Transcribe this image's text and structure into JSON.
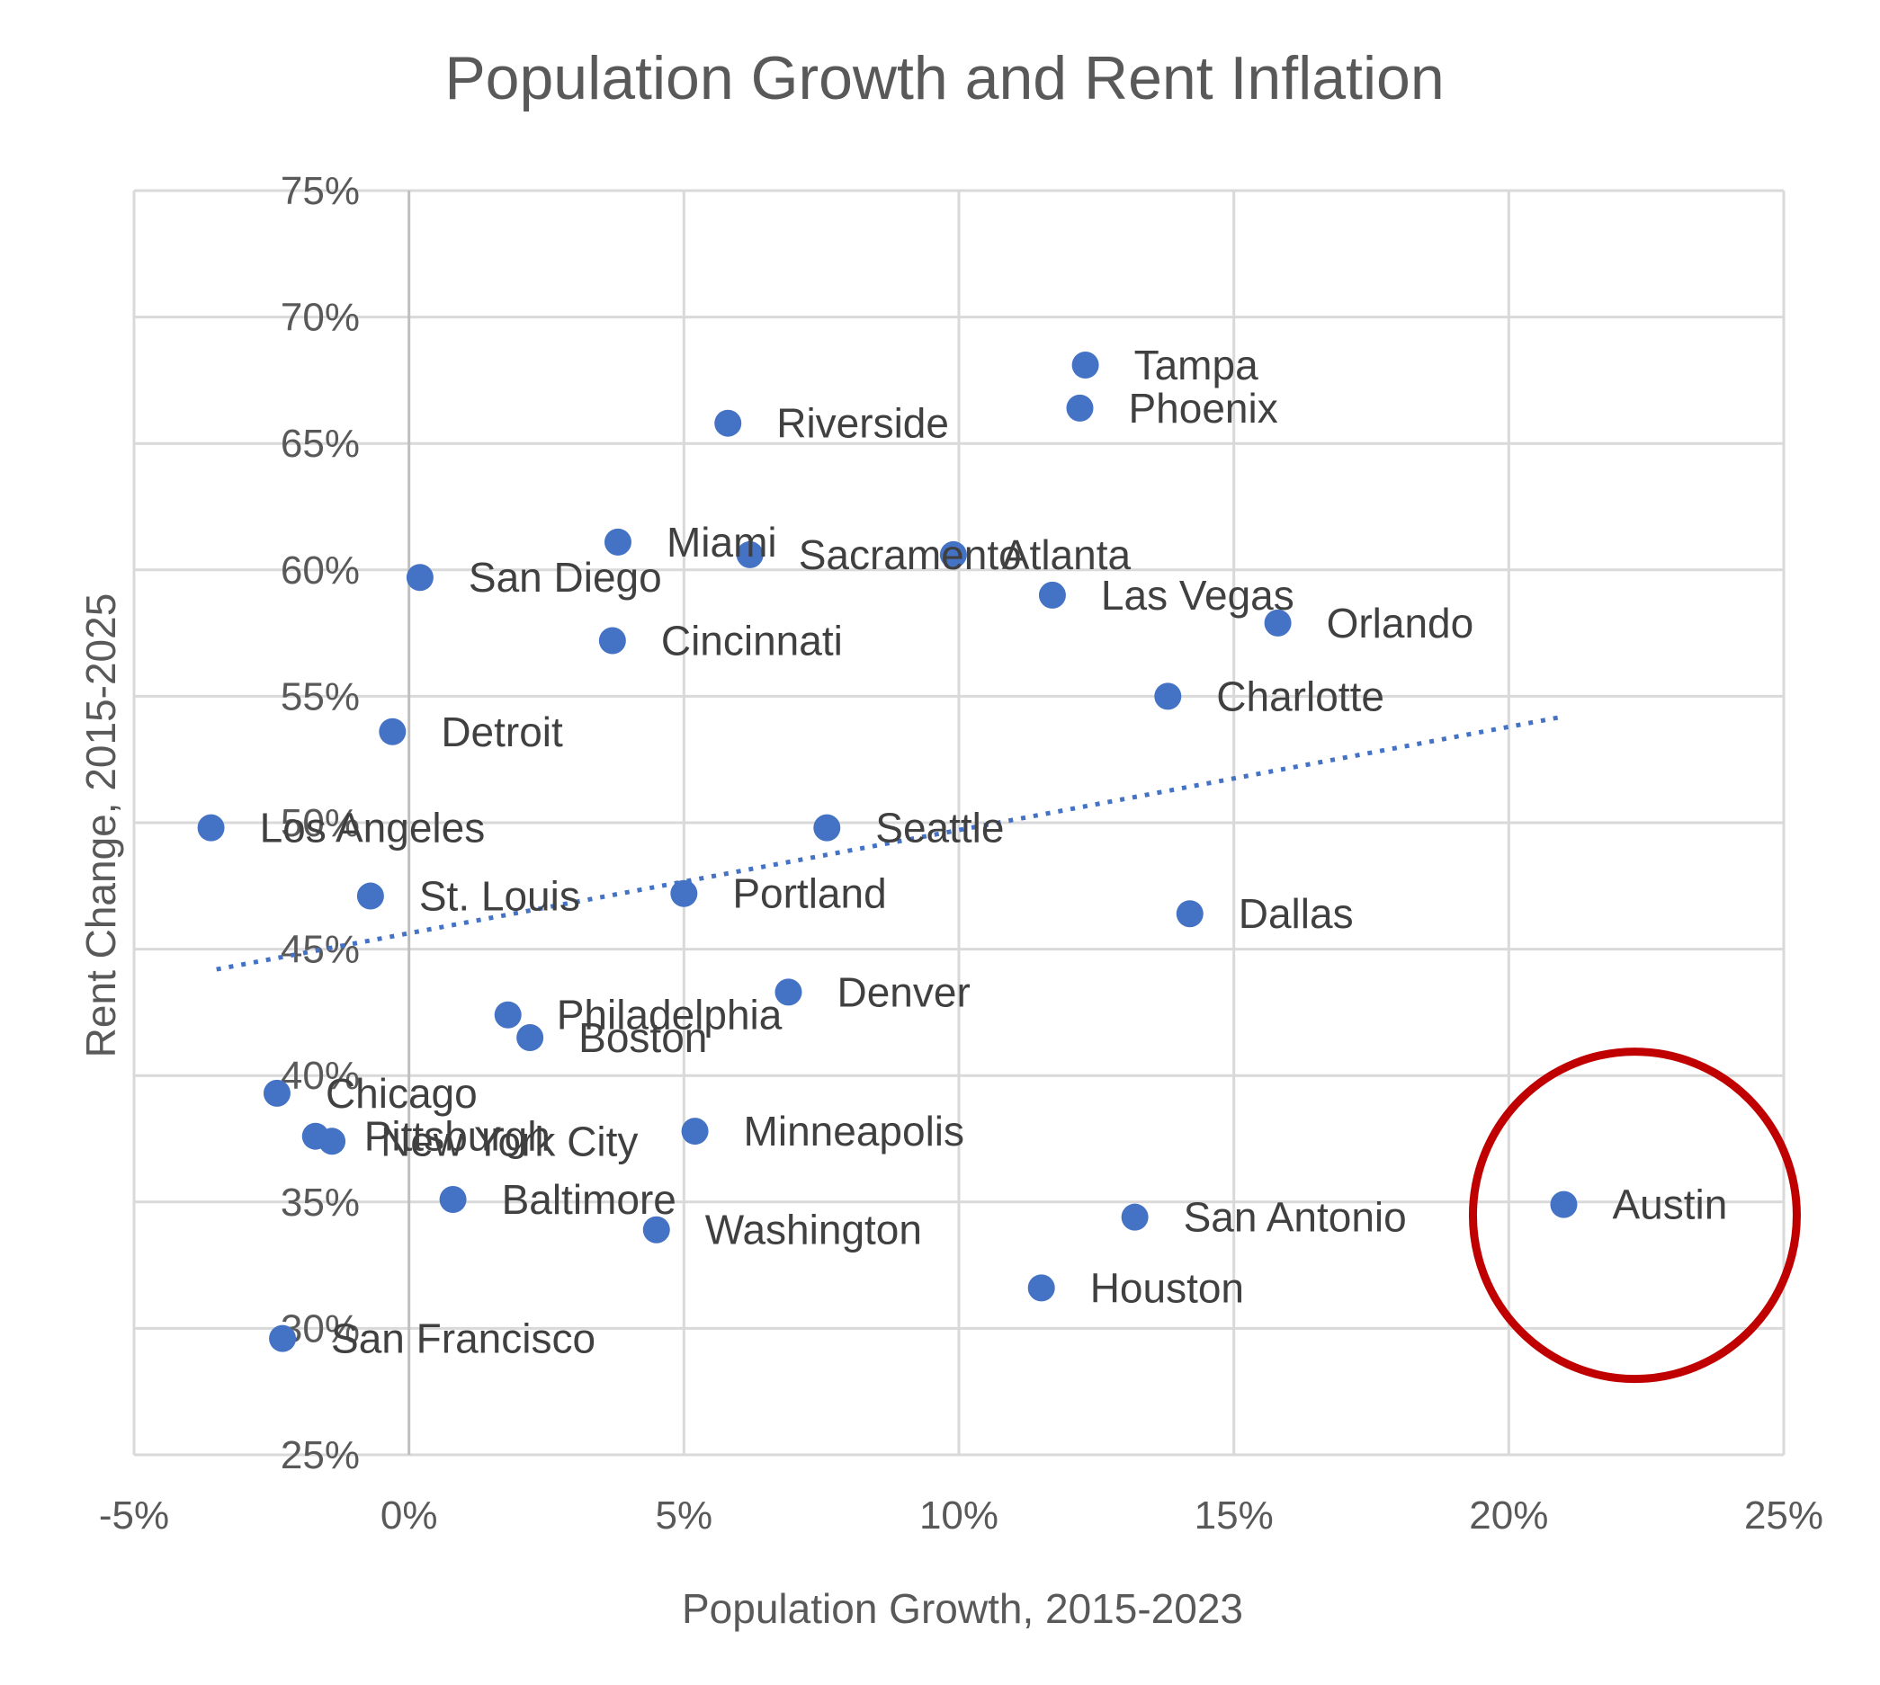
{
  "chart_data": {
    "type": "scatter",
    "title": "Population Growth and Rent Inflation",
    "xlabel": "Population Growth, 2015-2023",
    "ylabel": "Rent Change, 2015-2025",
    "xlim": [
      -5,
      25
    ],
    "ylim": [
      25,
      75
    ],
    "x_ticks": [
      -5,
      0,
      5,
      10,
      15,
      20,
      25
    ],
    "y_ticks": [
      25,
      30,
      35,
      40,
      45,
      50,
      55,
      60,
      65,
      70,
      75
    ],
    "x_tick_labels": [
      "-5%",
      "0%",
      "5%",
      "10%",
      "15%",
      "20%",
      "25%"
    ],
    "y_tick_labels": [
      "25%",
      "30%",
      "35%",
      "40%",
      "45%",
      "50%",
      "55%",
      "60%",
      "65%",
      "70%",
      "75%"
    ],
    "grid": true,
    "marker_color": "#4472c4",
    "trendline": {
      "style": "dotted",
      "color": "#4472c4",
      "x": [
        -3.5,
        21
      ],
      "y": [
        44.2,
        54.2
      ]
    },
    "highlight": {
      "label": "Austin",
      "color": "#c00000",
      "shape": "circle"
    },
    "points": [
      {
        "label": "Tampa",
        "x": 12.3,
        "y": 68.1
      },
      {
        "label": "Phoenix",
        "x": 12.2,
        "y": 66.4
      },
      {
        "label": "Riverside",
        "x": 5.8,
        "y": 65.8
      },
      {
        "label": "Miami",
        "x": 3.8,
        "y": 61.1
      },
      {
        "label": "Sacramento",
        "x": 6.2,
        "y": 60.6
      },
      {
        "label": "Atlanta",
        "x": 9.9,
        "y": 60.6
      },
      {
        "label": "San Diego",
        "x": 0.2,
        "y": 59.7
      },
      {
        "label": "Las Vegas",
        "x": 11.7,
        "y": 59.0
      },
      {
        "label": "Orlando",
        "x": 15.8,
        "y": 57.9
      },
      {
        "label": "Cincinnati",
        "x": 3.7,
        "y": 57.2
      },
      {
        "label": "Charlotte",
        "x": 13.8,
        "y": 55.0
      },
      {
        "label": "Detroit",
        "x": -0.3,
        "y": 53.6
      },
      {
        "label": "Los Angeles",
        "x": -3.6,
        "y": 49.8
      },
      {
        "label": "Seattle",
        "x": 7.6,
        "y": 49.8
      },
      {
        "label": "St. Louis",
        "x": -0.7,
        "y": 47.1
      },
      {
        "label": "Portland",
        "x": 5.0,
        "y": 47.2
      },
      {
        "label": "Dallas",
        "x": 14.2,
        "y": 46.4
      },
      {
        "label": "Denver",
        "x": 6.9,
        "y": 43.3
      },
      {
        "label": "Philadelphia",
        "x": 1.8,
        "y": 42.4
      },
      {
        "label": "Boston",
        "x": 2.2,
        "y": 41.5
      },
      {
        "label": "Chicago",
        "x": -2.4,
        "y": 39.3
      },
      {
        "label": "Pittsburgh",
        "x": -1.7,
        "y": 37.6
      },
      {
        "label": "New York City",
        "x": -1.4,
        "y": 37.4
      },
      {
        "label": "Minneapolis",
        "x": 5.2,
        "y": 37.8
      },
      {
        "label": "Baltimore",
        "x": 0.8,
        "y": 35.1
      },
      {
        "label": "Washington",
        "x": 4.5,
        "y": 33.9
      },
      {
        "label": "San Antonio",
        "x": 13.2,
        "y": 34.4
      },
      {
        "label": "Austin",
        "x": 21.0,
        "y": 34.9
      },
      {
        "label": "Houston",
        "x": 11.5,
        "y": 31.6
      },
      {
        "label": "San Francisco",
        "x": -2.3,
        "y": 29.6
      }
    ]
  }
}
